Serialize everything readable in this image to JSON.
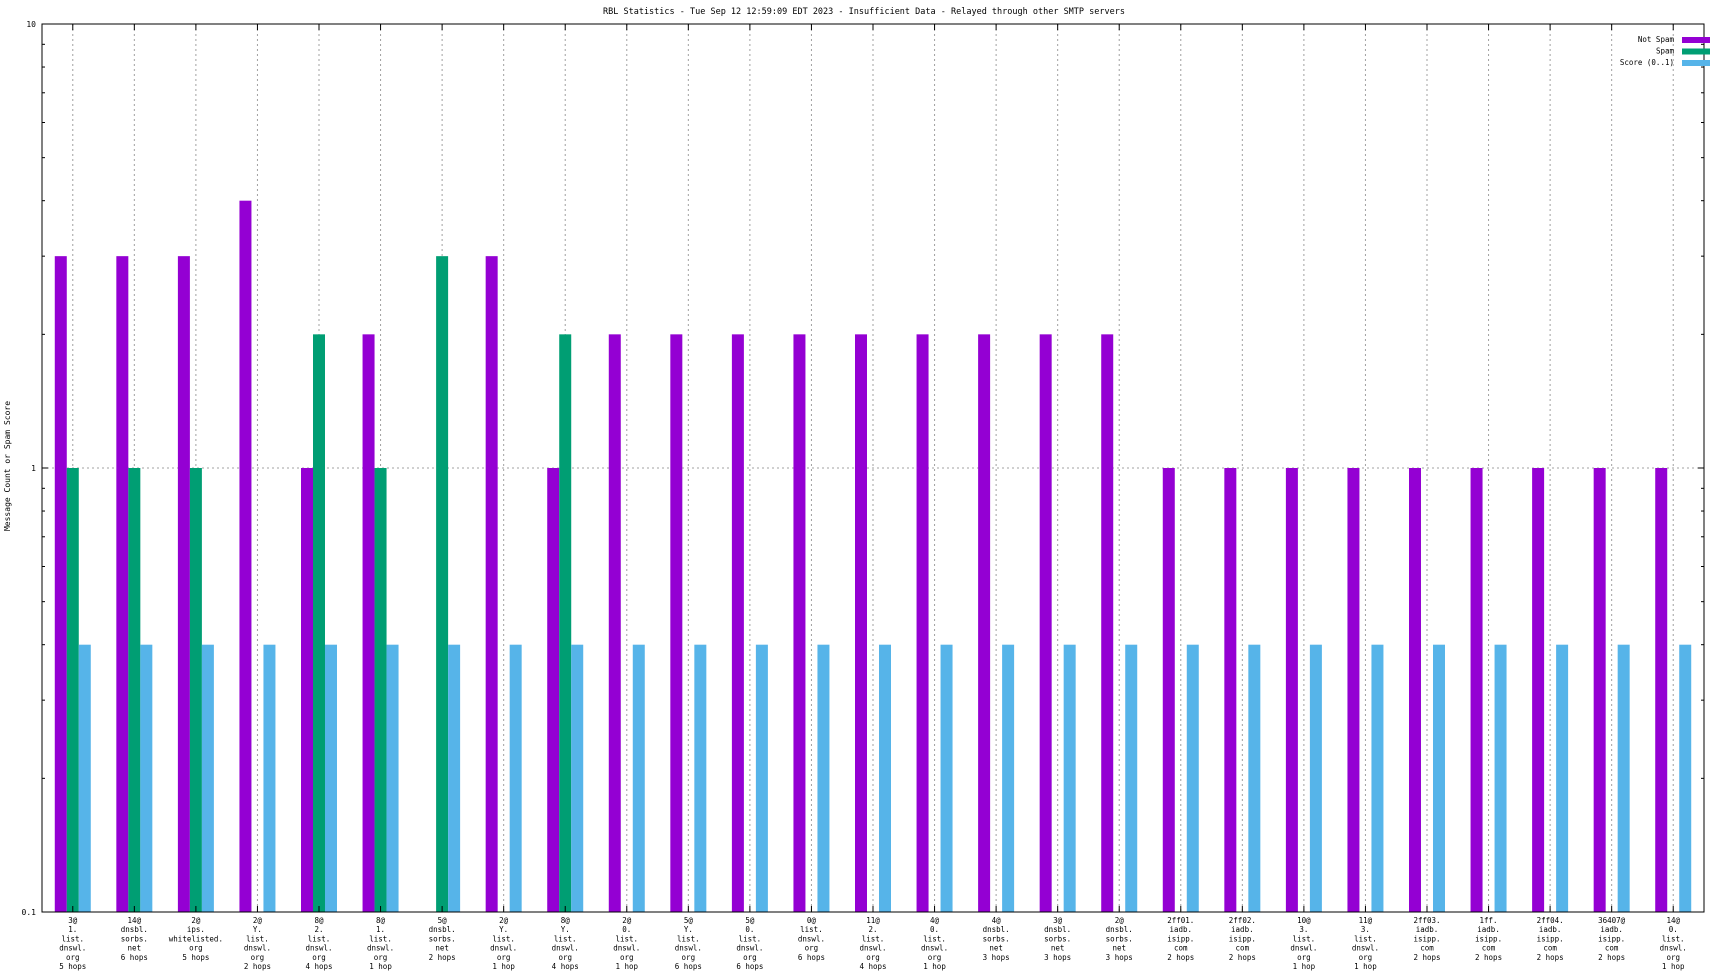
{
  "chart_data": {
    "type": "bar",
    "title": "RBL Statistics - Tue Sep 12 12:59:09 EDT 2023 - Insufficient Data - Relayed through other SMTP servers",
    "ylabel": "Message Count or Spam Score",
    "xlabel": "",
    "yscale": "log",
    "ylim": [
      0.1,
      10
    ],
    "yticks": [
      "0.1",
      "1",
      "10"
    ],
    "grid": true,
    "legend_position": "top-right",
    "categories": [
      [
        "3@",
        "1.",
        "list.",
        "dnswl.",
        "org",
        "5 hops"
      ],
      [
        "14@",
        "dnsbl.",
        "sorbs.",
        "net",
        "6 hops"
      ],
      [
        "2@",
        "ips.",
        "whitelisted.",
        "org",
        "5 hops"
      ],
      [
        "2@",
        "Y.",
        "list.",
        "dnswl.",
        "org",
        "2 hops"
      ],
      [
        "8@",
        "2.",
        "list.",
        "dnswl.",
        "org",
        "4 hops"
      ],
      [
        "8@",
        "1.",
        "list.",
        "dnswl.",
        "org",
        "1 hop"
      ],
      [
        "5@",
        "dnsbl.",
        "sorbs.",
        "net",
        "2 hops"
      ],
      [
        "2@",
        "Y.",
        "list.",
        "dnswl.",
        "org",
        "1 hop"
      ],
      [
        "8@",
        "Y.",
        "list.",
        "dnswl.",
        "org",
        "4 hops"
      ],
      [
        "2@",
        "0.",
        "list.",
        "dnswl.",
        "org",
        "1 hop"
      ],
      [
        "5@",
        "Y.",
        "list.",
        "dnswl.",
        "org",
        "6 hops"
      ],
      [
        "5@",
        "0.",
        "list.",
        "dnswl.",
        "org",
        "6 hops"
      ],
      [
        "0@",
        "list.",
        "dnswl.",
        "org",
        "6 hops"
      ],
      [
        "11@",
        "2.",
        "list.",
        "dnswl.",
        "org",
        "4 hops"
      ],
      [
        "4@",
        "0.",
        "list.",
        "dnswl.",
        "org",
        "1 hop"
      ],
      [
        "4@",
        "dnsbl.",
        "sorbs.",
        "net",
        "3 hops"
      ],
      [
        "3@",
        "dnsbl.",
        "sorbs.",
        "net",
        "3 hops"
      ],
      [
        "2@",
        "dnsbl.",
        "sorbs.",
        "net",
        "3 hops"
      ],
      [
        "2ff01.",
        "iadb.",
        "isipp.",
        "com",
        "2 hops"
      ],
      [
        "2ff02.",
        "iadb.",
        "isipp.",
        "com",
        "2 hops"
      ],
      [
        "10@",
        "3.",
        "list.",
        "dnswl.",
        "org",
        "1 hop"
      ],
      [
        "11@",
        "3.",
        "list.",
        "dnswl.",
        "org",
        "1 hop"
      ],
      [
        "2ff03.",
        "iadb.",
        "isipp.",
        "com",
        "2 hops"
      ],
      [
        "1ff.",
        "iadb.",
        "isipp.",
        "com",
        "2 hops"
      ],
      [
        "2ff04.",
        "iadb.",
        "isipp.",
        "com",
        "2 hops"
      ],
      [
        "36407@",
        "iadb.",
        "isipp.",
        "com",
        "2 hops"
      ],
      [
        "14@",
        "0.",
        "list.",
        "dnswl.",
        "org",
        "1 hop"
      ]
    ],
    "series": [
      {
        "name": "Not Spam",
        "color": "#9400d3",
        "values": [
          3,
          3,
          3,
          4,
          1,
          2,
          null,
          3,
          1,
          2,
          2,
          2,
          2,
          2,
          2,
          2,
          2,
          2,
          1,
          1,
          1,
          1,
          1,
          1,
          1,
          1,
          1
        ]
      },
      {
        "name": "Spam",
        "color": "#009e73",
        "values": [
          1,
          1,
          1,
          null,
          2,
          1,
          3,
          null,
          2,
          null,
          null,
          null,
          null,
          null,
          null,
          null,
          null,
          null,
          null,
          null,
          null,
          null,
          null,
          null,
          null,
          null,
          null
        ]
      },
      {
        "name": "Score (0..1)",
        "color": "#56b4e9",
        "values": [
          0.4,
          0.4,
          0.4,
          0.4,
          0.4,
          0.4,
          0.4,
          0.4,
          0.4,
          0.4,
          0.4,
          0.4,
          0.4,
          0.4,
          0.4,
          0.4,
          0.4,
          0.4,
          0.4,
          0.4,
          0.4,
          0.4,
          0.4,
          0.4,
          0.4,
          0.4,
          0.4
        ]
      }
    ]
  }
}
